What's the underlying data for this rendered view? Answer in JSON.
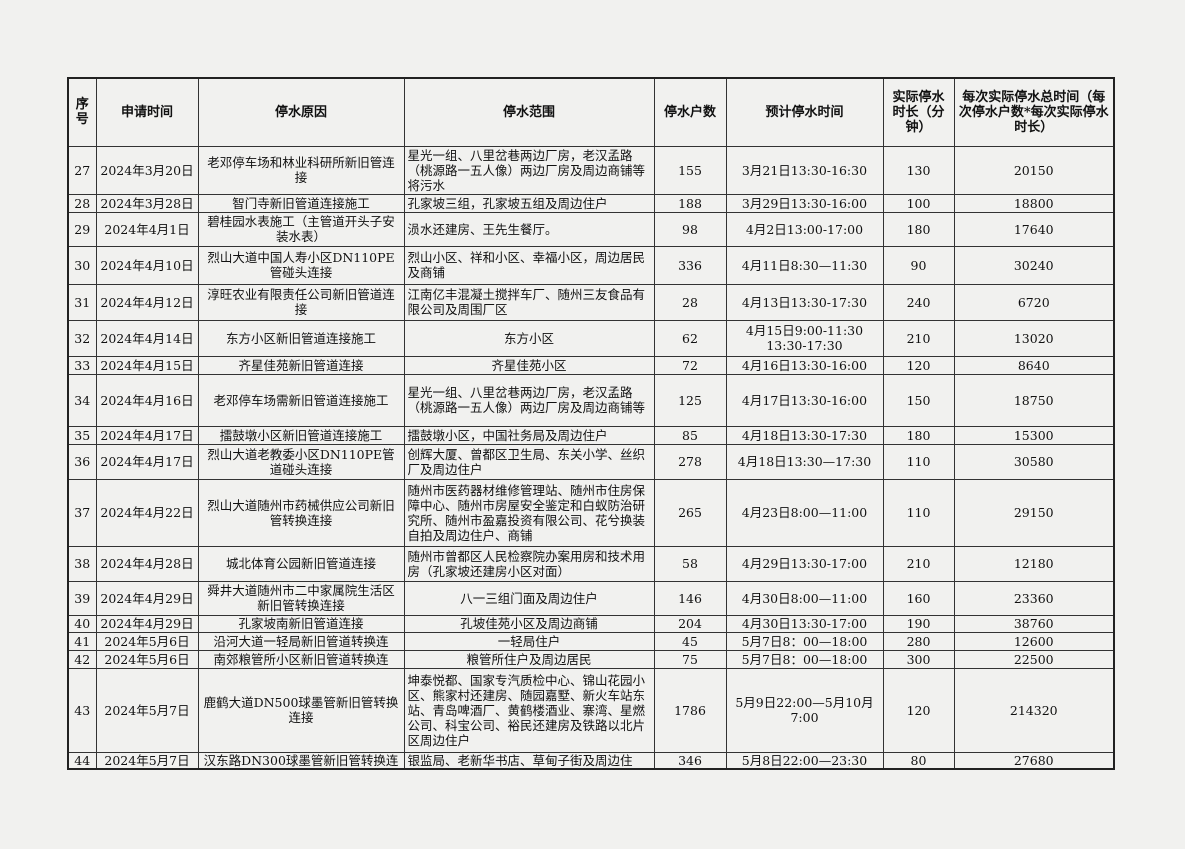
{
  "table": {
    "header": [
      "序号",
      "申请时间",
      "停水原因",
      "停水范围",
      "停水户数",
      "预计停水时间",
      "实际停水时长（分钟）",
      "每次实际停水总时间（每次停水户数*每次实际停水时长）"
    ],
    "rows": [
      [
        "27",
        "2024年3月20日",
        "老邓停车场和林业科研所新旧管连接",
        "星光一组、八里岔巷两边厂房，老汉孟路（桃源路一五人像）两边厂房及周边商铺等将污水",
        "155",
        "3月21日13:30-16:30",
        "130",
        "20150"
      ],
      [
        "28",
        "2024年3月28日",
        "智门寺新旧管道连接施工",
        "孔家坡三组，孔家坡五组及周边住户",
        "188",
        "3月29日13:30-16:00",
        "100",
        "18800"
      ],
      [
        "29",
        "2024年4月1日",
        "碧桂园水表施工（主管道开头子安装水表）",
        "涢水还建房、王先生餐厅。",
        "98",
        "4月2日13:00-17:00",
        "180",
        "17640"
      ],
      [
        "30",
        "2024年4月10日",
        "烈山大道中国人寿小区DN110PE管碰头连接",
        "烈山小区、祥和小区、幸福小区，周边居民及商铺",
        "336",
        "4月11日8:30—11:30",
        "90",
        "30240"
      ],
      [
        "31",
        "2024年4月12日",
        "淳旺农业有限责任公司新旧管道连接",
        "江南亿丰混凝土搅拌车厂、随州三友食品有限公司及周围厂区",
        "28",
        "4月13日13:30-17:30",
        "240",
        "6720"
      ],
      [
        "32",
        "2024年4月14日",
        "东方小区新旧管道连接施工",
        "东方小区",
        "62",
        "4月15日9:00-11:30 13:30-17:30",
        "210",
        "13020"
      ],
      [
        "33",
        "2024年4月15日",
        "齐星佳苑新旧管道连接",
        "齐星佳苑小区",
        "72",
        "4月16日13:30-16:00",
        "120",
        "8640"
      ],
      [
        "34",
        "2024年4月16日",
        "老邓停车场需新旧管道连接施工",
        "星光一组、八里岔巷两边厂房，老汉孟路（桃源路一五人像）两边厂房及周边商铺等",
        "125",
        "4月17日13:30-16:00",
        "150",
        "18750"
      ],
      [
        "35",
        "2024年4月17日",
        "擂鼓墩小区新旧管道连接施工",
        "擂鼓墩小区，中国社务局及周边住户",
        "85",
        "4月18日13:30-17:30",
        "180",
        "15300"
      ],
      [
        "36",
        "2024年4月17日",
        "烈山大道老教委小区DN110PE管道碰头连接",
        "创辉大厦、曾都区卫生局、东关小学、丝织厂及周边住户",
        "278",
        "4月18日13:30—17:30",
        "110",
        "30580"
      ],
      [
        "37",
        "2024年4月22日",
        "烈山大道随州市药械供应公司新旧管转换连接",
        "随州市医药器材维修管理站、随州市住房保障中心、随州市房屋安全鉴定和白蚁防治研究所、随州市盈嘉投资有限公司、花兮换装自拍及周边住户、商铺",
        "265",
        "4月23日8:00—11:00",
        "110",
        "29150"
      ],
      [
        "38",
        "2024年4月28日",
        "城北体育公园新旧管道连接",
        "随州市曾都区人民检察院办案用房和技术用房（孔家坡还建房小区对面）",
        "58",
        "4月29日13:30-17:00",
        "210",
        "12180"
      ],
      [
        "39",
        "2024年4月29日",
        "舜井大道随州市二中家属院生活区新旧管转换连接",
        "八一三组门面及周边住户",
        "146",
        "4月30日8:00—11:00",
        "160",
        "23360"
      ],
      [
        "40",
        "2024年4月29日",
        "孔家坡南新旧管道连接",
        "孔坡佳苑小区及周边商铺",
        "204",
        "4月30日13:30-17:00",
        "190",
        "38760"
      ],
      [
        "41",
        "2024年5月6日",
        "沿河大道一轻局新旧管道转换连",
        "一轻局住户",
        "45",
        "5月7日8：00—18:00",
        "280",
        "12600"
      ],
      [
        "42",
        "2024年5月6日",
        "南郊粮管所小区新旧管道转换连",
        "粮管所住户及周边居民",
        "75",
        "5月7日8：00—18:00",
        "300",
        "22500"
      ],
      [
        "43",
        "2024年5月7日",
        "鹿鹤大道DN500球墨管新旧管转换连接",
        "坤泰悦都、国家专汽质检中心、锦山花园小区、熊家村还建房、随园嘉墅、新火车站东站、青岛啤酒厂、黄鹤楼酒业、寨湾、星燃公司、科宝公司、裕民还建房及铁路以北片区周边住户",
        "1786",
        "5月9日22:00—5月10月7:00",
        "120",
        "214320"
      ],
      [
        "44",
        "2024年5月7日",
        "汉东路DN300球墨管新旧管转换连",
        "银监局、老新华书店、草甸子街及周边住",
        "346",
        "5月8日22:00—23:30",
        "80",
        "27680"
      ]
    ]
  }
}
